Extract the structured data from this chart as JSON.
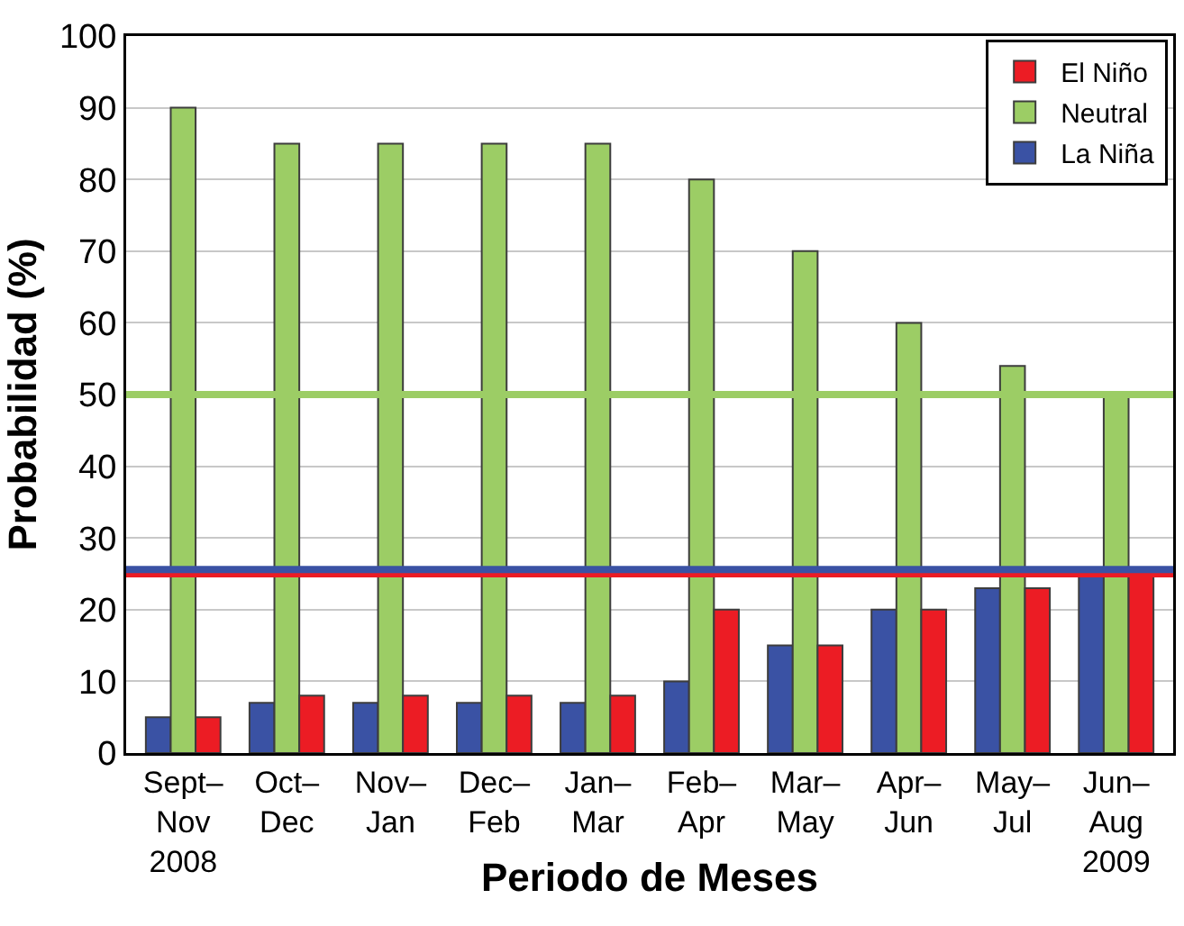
{
  "chart_data": {
    "type": "bar",
    "xlabel": "Periodo de Meses",
    "ylabel": "Probabilidad (%)",
    "categories": [
      "Sept–\nNov\n2008",
      "Oct–\nDec",
      "Nov–\nJan",
      "Dec–\nFeb",
      "Jan–\nMar",
      "Feb–\nApr",
      "Mar–\nMay",
      "Apr–\nJun",
      "May–\nJul",
      "Jun–\nAug\n2009"
    ],
    "series": [
      {
        "name": "La Niña",
        "color": "#3a52a4",
        "values": [
          5,
          7,
          7,
          7,
          7,
          10,
          15,
          20,
          23,
          25
        ]
      },
      {
        "name": "Neutral",
        "color": "#9ccd65",
        "values": [
          90,
          85,
          85,
          85,
          85,
          80,
          70,
          60,
          54,
          50
        ]
      },
      {
        "name": "El Niño",
        "color": "#ec1c24",
        "values": [
          5,
          8,
          8,
          8,
          8,
          20,
          15,
          20,
          23,
          25
        ]
      }
    ],
    "ref_lines": [
      {
        "axis": "y",
        "value": 50,
        "color": "#9ccd65"
      },
      {
        "axis": "y",
        "value": 25,
        "color": "#ec1c24"
      },
      {
        "axis": "y",
        "value": 25.6,
        "color": "#3a52a4"
      }
    ],
    "ylim": [
      0,
      100
    ],
    "yticks": [
      0,
      10,
      20,
      30,
      40,
      50,
      60,
      70,
      80,
      90,
      100
    ],
    "grid": "y",
    "legend": "top right"
  }
}
